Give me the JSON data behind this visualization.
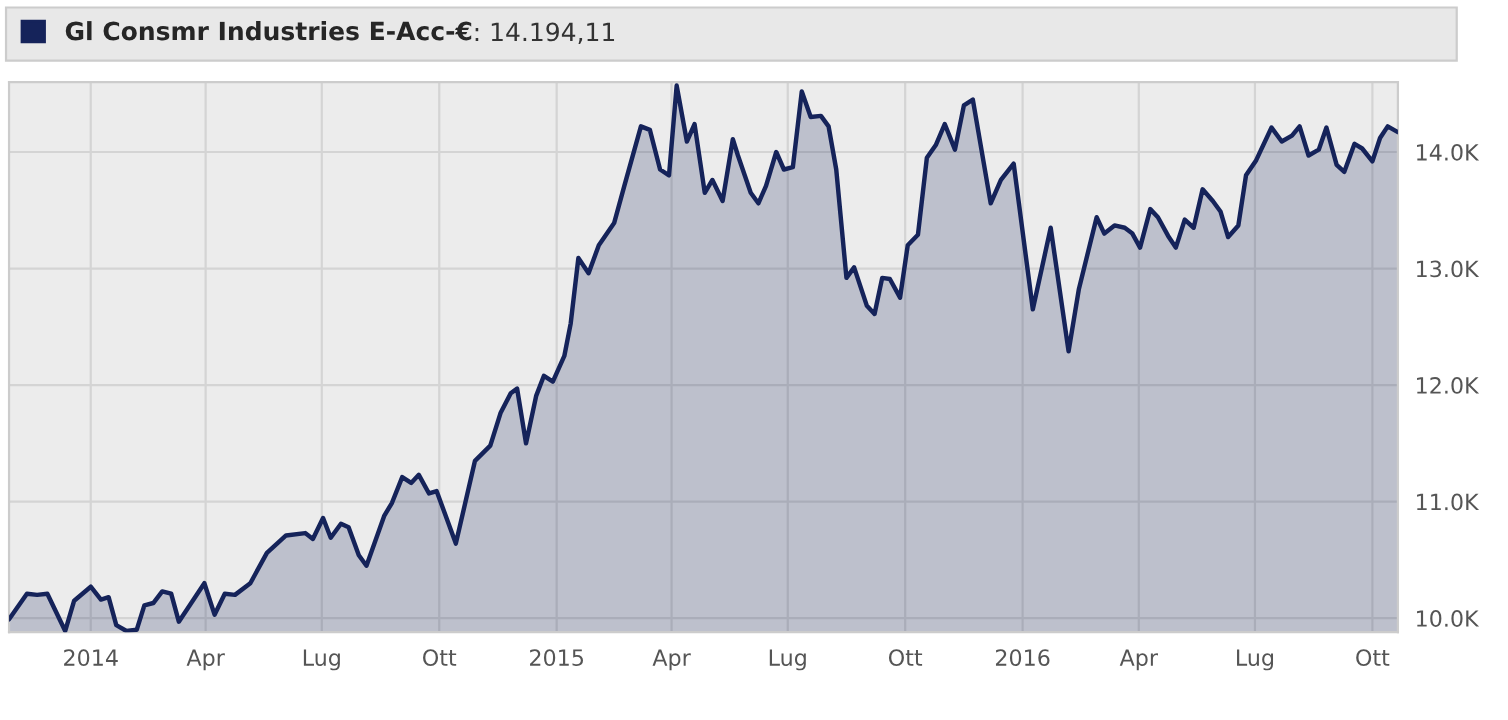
{
  "chart_data": {
    "type": "area",
    "legend": "top",
    "grid": true,
    "annotations": [
      ": 14.194,11"
    ],
    "xlim": [
      "2013-10-29",
      "2016-10-21"
    ],
    "xticks": [
      {
        "value": "2014-01-01",
        "label": "2014"
      },
      {
        "value": "2014-04-01",
        "label": "Apr"
      },
      {
        "value": "2014-07-01",
        "label": "Lug"
      },
      {
        "value": "2014-10-01",
        "label": "Ott"
      },
      {
        "value": "2015-01-01",
        "label": "2015"
      },
      {
        "value": "2015-04-01",
        "label": "Apr"
      },
      {
        "value": "2015-07-01",
        "label": "Lug"
      },
      {
        "value": "2015-10-01",
        "label": "Ott"
      },
      {
        "value": "2016-01-01",
        "label": "2016"
      },
      {
        "value": "2016-04-01",
        "label": "Apr"
      },
      {
        "value": "2016-07-01",
        "label": "Lug"
      },
      {
        "value": "2016-10-01",
        "label": "Ott"
      }
    ],
    "ylim": [
      9880,
      14600
    ],
    "yticks": [
      {
        "value": 10000,
        "label": "10.0K"
      },
      {
        "value": 11000,
        "label": "11.0K"
      },
      {
        "value": 12000,
        "label": "12.0K"
      },
      {
        "value": 13000,
        "label": "13.0K"
      },
      {
        "value": 14000,
        "label": "14.0K"
      }
    ],
    "x": [
      "2013-10-29",
      "2013-11-12",
      "2013-11-20",
      "2013-11-28",
      "2013-12-12",
      "2013-12-19",
      "2014-01-01",
      "2014-01-09",
      "2014-01-15",
      "2014-01-21",
      "2014-01-29",
      "2014-02-06",
      "2014-02-12",
      "2014-02-19",
      "2014-02-26",
      "2014-03-05",
      "2014-03-11",
      "2014-03-31",
      "2014-04-08",
      "2014-04-16",
      "2014-04-24",
      "2014-05-06",
      "2014-05-19",
      "2014-06-03",
      "2014-06-18",
      "2014-06-24",
      "2014-07-02",
      "2014-07-08",
      "2014-07-16",
      "2014-07-22",
      "2014-07-30",
      "2014-08-05",
      "2014-08-19",
      "2014-08-25",
      "2014-09-02",
      "2014-09-09",
      "2014-09-15",
      "2014-09-23",
      "2014-09-29",
      "2014-10-14",
      "2014-10-29",
      "2014-11-10",
      "2014-11-18",
      "2014-11-26",
      "2014-12-01",
      "2014-12-08",
      "2014-12-16",
      "2014-12-22",
      "2014-12-29",
      "2015-01-07",
      "2015-01-12",
      "2015-01-18",
      "2015-01-26",
      "2015-02-03",
      "2015-02-15",
      "2015-02-23",
      "2015-03-08",
      "2015-03-15",
      "2015-03-23",
      "2015-03-30",
      "2015-04-05",
      "2015-04-13",
      "2015-04-19",
      "2015-04-27",
      "2015-05-03",
      "2015-05-11",
      "2015-05-19",
      "2015-05-23",
      "2015-06-02",
      "2015-06-08",
      "2015-06-14",
      "2015-06-22",
      "2015-06-28",
      "2015-07-05",
      "2015-07-12",
      "2015-07-19",
      "2015-07-27",
      "2015-08-02",
      "2015-08-08",
      "2015-08-16",
      "2015-08-22",
      "2015-09-01",
      "2015-09-07",
      "2015-09-13",
      "2015-09-19",
      "2015-09-27",
      "2015-10-03",
      "2015-10-11",
      "2015-10-18",
      "2015-10-25",
      "2015-11-01",
      "2015-11-09",
      "2015-11-16",
      "2015-11-23",
      "2015-12-07",
      "2015-12-15",
      "2015-12-25",
      "2016-01-09",
      "2016-01-23",
      "2016-02-06",
      "2016-02-14",
      "2016-02-28",
      "2016-03-05",
      "2016-03-13",
      "2016-03-21",
      "2016-03-27",
      "2016-04-02",
      "2016-04-10",
      "2016-04-16",
      "2016-04-24",
      "2016-04-30",
      "2016-05-07",
      "2016-05-14",
      "2016-05-21",
      "2016-05-29",
      "2016-06-04",
      "2016-06-10",
      "2016-06-18",
      "2016-06-24",
      "2016-07-02",
      "2016-07-14",
      "2016-07-22",
      "2016-07-30",
      "2016-08-05",
      "2016-08-12",
      "2016-08-20",
      "2016-08-26",
      "2016-09-03",
      "2016-09-09",
      "2016-09-17",
      "2016-09-23",
      "2016-10-01",
      "2016-10-07",
      "2016-10-13",
      "2016-10-21"
    ],
    "series": [
      {
        "name": "Gl Consmr Industries E-Acc-€",
        "color": "#15235a",
        "values": [
          9990,
          10210,
          10200,
          10210,
          9890,
          10150,
          10270,
          10160,
          10180,
          9940,
          9890,
          9900,
          10110,
          10130,
          10230,
          10210,
          9970,
          10300,
          10030,
          10210,
          10200,
          10300,
          10560,
          10710,
          10730,
          10680,
          10860,
          10690,
          10810,
          10780,
          10540,
          10450,
          10880,
          10990,
          11210,
          11160,
          11230,
          11070,
          11090,
          10640,
          11350,
          11480,
          11760,
          11930,
          11970,
          11500,
          11910,
          12080,
          12030,
          12250,
          12530,
          13090,
          12960,
          13200,
          13390,
          13710,
          14220,
          14190,
          13850,
          13800,
          14570,
          14090,
          14240,
          13650,
          13760,
          13580,
          14110,
          13970,
          13650,
          13560,
          13710,
          14000,
          13850,
          13870,
          14520,
          14300,
          14310,
          14220,
          13850,
          12920,
          13010,
          12680,
          12610,
          12920,
          12910,
          12750,
          13200,
          13290,
          13950,
          14060,
          14240,
          14020,
          14400,
          14450,
          13560,
          13760,
          13900,
          12650,
          13350,
          12290,
          12820,
          13440,
          13300,
          13370,
          13350,
          13300,
          13180,
          13510,
          13440,
          13280,
          13180,
          13420,
          13350,
          13680,
          13580,
          13490,
          13270,
          13370,
          13800,
          13930,
          14210,
          14090,
          14140,
          14220,
          13970,
          14020,
          14210,
          13890,
          13830,
          14070,
          14030,
          13920,
          14120,
          14220,
          14170
        ]
      }
    ]
  }
}
